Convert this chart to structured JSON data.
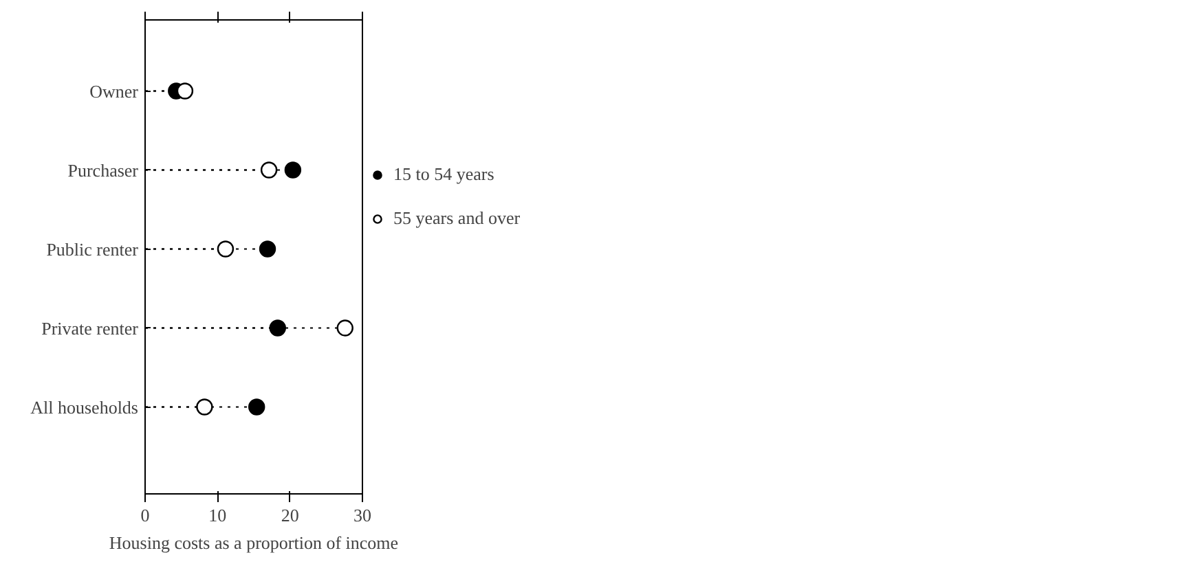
{
  "chart_data": {
    "type": "lollipop",
    "xlabel": "Housing costs as a proportion of income",
    "orientation": "horizontal",
    "categories": [
      "Owner",
      "Purchaser",
      "Public renter",
      "Private renter",
      "All households"
    ],
    "series": [
      {
        "name": "15 to 54 years",
        "color": "#000000",
        "marker": "circle",
        "values": [
          4.3,
          20.4,
          16.9,
          18.3,
          15.4
        ]
      },
      {
        "name": "55 years and over",
        "color": "#ffffff",
        "marker": "circle",
        "values": [
          5.5,
          17.1,
          11.1,
          27.6,
          8.2
        ]
      }
    ],
    "xlim": [
      0,
      30
    ],
    "xticks": [
      0,
      10,
      20,
      30
    ],
    "grid": false,
    "legend": "right",
    "line_style": "dotted"
  }
}
